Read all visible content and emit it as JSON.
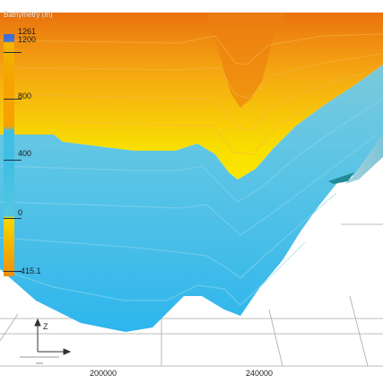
{
  "window": {
    "width": 427,
    "height": 428
  },
  "colorbar": {
    "title": "Bathymetry (m)",
    "labels": [
      "1261",
      "1200",
      "800",
      "400",
      "0",
      "-415.1"
    ]
  },
  "axes": {
    "x_ticks": [
      "200000",
      "240000"
    ],
    "axis_letter": "Z"
  },
  "colors": {
    "hot": "#e97518",
    "mid_orange": "#f4a12a",
    "yellow": "#f7e000",
    "cyan": "#5cc5e6",
    "grid": "#9a9a9a"
  }
}
